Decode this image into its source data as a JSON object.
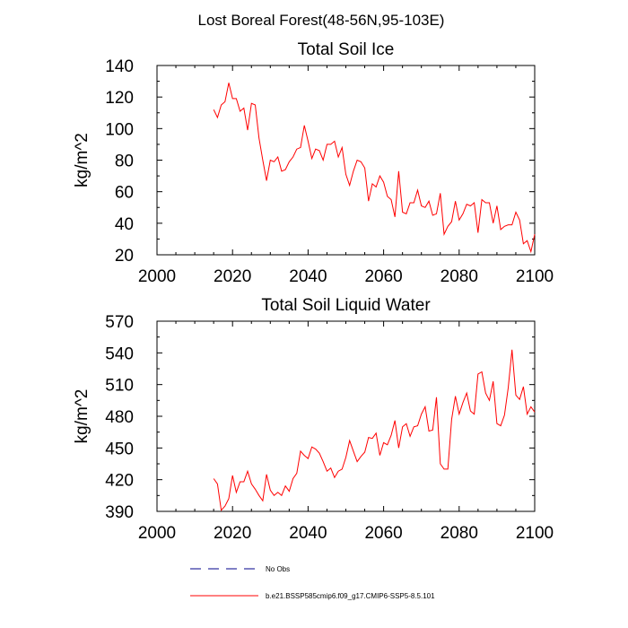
{
  "main_title": "Lost Boreal Forest(48-56N,95-103E)",
  "legend": {
    "items": [
      {
        "label": "No Obs",
        "color": "#00008b",
        "style": "dashed"
      },
      {
        "label": "b.e21.BSSP585cmip6.f09_g17.CMIP6-SSP5-8.5.101",
        "color": "#ff0000",
        "style": "solid"
      }
    ]
  },
  "chart_data": [
    {
      "type": "line",
      "title": "Total Soil Ice",
      "xlabel": "",
      "ylabel": "kg/m^2",
      "xlim": [
        2000,
        2100
      ],
      "ylim": [
        20,
        140
      ],
      "xticks": [
        2000,
        2020,
        2040,
        2060,
        2080,
        2100
      ],
      "yticks": [
        20,
        40,
        60,
        80,
        100,
        120,
        140
      ],
      "grid": false,
      "series": [
        {
          "color": "#ff0000",
          "x": [
            2015,
            2016,
            2017,
            2018,
            2019,
            2020,
            2021,
            2022,
            2023,
            2024,
            2025,
            2026,
            2027,
            2028,
            2029,
            2030,
            2031,
            2032,
            2033,
            2034,
            2035,
            2036,
            2037,
            2038,
            2039,
            2040,
            2041,
            2042,
            2043,
            2044,
            2045,
            2046,
            2047,
            2048,
            2049,
            2050,
            2051,
            2052,
            2053,
            2054,
            2055,
            2056,
            2057,
            2058,
            2059,
            2060,
            2061,
            2062,
            2063,
            2064,
            2065,
            2066,
            2067,
            2068,
            2069,
            2070,
            2071,
            2072,
            2073,
            2074,
            2075,
            2076,
            2077,
            2078,
            2079,
            2080,
            2081,
            2082,
            2083,
            2084,
            2085,
            2086,
            2087,
            2088,
            2089,
            2090,
            2091,
            2092,
            2093,
            2094,
            2095,
            2096,
            2097,
            2098,
            2099,
            2100
          ],
          "y": [
            112,
            107,
            115,
            117,
            129,
            119,
            119,
            111,
            113,
            99,
            116,
            115,
            94,
            80,
            67,
            80,
            79,
            82,
            73,
            74,
            79,
            82,
            87,
            88,
            102,
            92,
            81,
            87,
            86,
            80,
            90,
            90,
            92,
            82,
            88,
            71,
            64,
            73,
            80,
            79,
            75,
            54,
            65,
            63,
            70,
            66,
            57,
            55,
            44,
            73,
            47,
            46,
            53,
            53,
            61,
            51,
            50,
            54,
            45,
            46,
            59,
            33,
            38,
            41,
            54,
            42,
            46,
            52,
            51,
            53,
            34,
            55,
            53,
            53,
            40,
            51,
            36,
            38,
            39,
            39,
            47,
            42,
            27,
            29,
            22,
            33
          ]
        }
      ]
    },
    {
      "type": "line",
      "title": "Total Soil Liquid Water",
      "xlabel": "",
      "ylabel": "kg/m^2",
      "xlim": [
        2000,
        2100
      ],
      "ylim": [
        390,
        570
      ],
      "xticks": [
        2000,
        2020,
        2040,
        2060,
        2080,
        2100
      ],
      "yticks": [
        390,
        420,
        450,
        480,
        510,
        540,
        570
      ],
      "grid": false,
      "series": [
        {
          "color": "#ff0000",
          "x": [
            2015,
            2016,
            2017,
            2018,
            2019,
            2020,
            2021,
            2022,
            2023,
            2024,
            2025,
            2026,
            2027,
            2028,
            2029,
            2030,
            2031,
            2032,
            2033,
            2034,
            2035,
            2036,
            2037,
            2038,
            2039,
            2040,
            2041,
            2042,
            2043,
            2044,
            2045,
            2046,
            2047,
            2048,
            2049,
            2050,
            2051,
            2052,
            2053,
            2054,
            2055,
            2056,
            2057,
            2058,
            2059,
            2060,
            2061,
            2062,
            2063,
            2064,
            2065,
            2066,
            2067,
            2068,
            2069,
            2070,
            2071,
            2072,
            2073,
            2074,
            2075,
            2076,
            2077,
            2078,
            2079,
            2080,
            2081,
            2082,
            2083,
            2084,
            2085,
            2086,
            2087,
            2088,
            2089,
            2090,
            2091,
            2092,
            2093,
            2094,
            2095,
            2096,
            2097,
            2098,
            2099,
            2100
          ],
          "y": [
            421,
            416,
            391,
            395,
            402,
            424,
            408,
            418,
            418,
            428,
            416,
            411,
            405,
            400,
            425,
            410,
            405,
            408,
            405,
            414,
            409,
            421,
            426,
            447,
            443,
            440,
            451,
            449,
            445,
            437,
            428,
            431,
            422,
            428,
            430,
            441,
            457,
            447,
            437,
            442,
            446,
            460,
            459,
            464,
            443,
            455,
            453,
            462,
            476,
            450,
            470,
            473,
            461,
            470,
            471,
            482,
            489,
            466,
            467,
            498,
            435,
            430,
            430,
            477,
            499,
            482,
            493,
            502,
            485,
            482,
            520,
            522,
            502,
            495,
            513,
            473,
            471,
            481,
            507,
            543,
            500,
            496,
            508,
            482,
            489,
            484
          ]
        }
      ]
    }
  ]
}
